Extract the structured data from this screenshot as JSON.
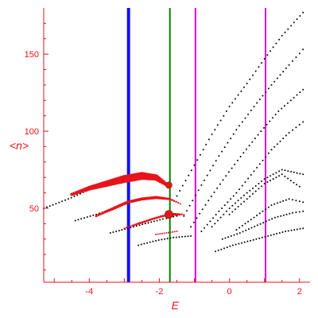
{
  "chart_data": {
    "type": "scatter",
    "title": "",
    "xlabel": "E",
    "ylabel": "<n>",
    "xlim": [
      -5.3,
      2.3
    ],
    "ylim": [
      2,
      180
    ],
    "grid": false,
    "legend": "none",
    "axis_color": "#e8141c",
    "x_ticks": [
      -4,
      -2,
      0,
      2
    ],
    "x_tick_labels": [
      "-4",
      "-2",
      "0",
      "2"
    ],
    "y_ticks": [
      50,
      100,
      150
    ],
    "y_tick_labels": [
      "50",
      "100",
      "150"
    ],
    "vertical_lines": [
      {
        "x": -2.88,
        "color": "#1010ff",
        "style": "thick"
      },
      {
        "x": -1.7,
        "color": "#008000",
        "style": "normal"
      },
      {
        "x": -0.97,
        "color": "#e000e0",
        "style": "normal"
      },
      {
        "x": 1.03,
        "color": "#e000e0",
        "style": "normal"
      }
    ],
    "series": [
      {
        "color": "#000000",
        "marker": "small-dot",
        "curves": [
          {
            "x": [
              -5.3,
              -4.6,
              -4.0,
              -3.4,
              -2.9
            ],
            "y": [
              50,
              56,
              62,
              67,
              70
            ]
          },
          {
            "x": [
              -4.4,
              -3.8,
              -3.2,
              -2.7,
              -2.2
            ],
            "y": [
              42,
              46,
              51,
              55,
              57
            ]
          },
          {
            "x": [
              -3.4,
              -2.9,
              -2.4,
              -1.9,
              -1.5
            ],
            "y": [
              34,
              37,
              40,
              43,
              45
            ]
          },
          {
            "x": [
              -2.6,
              -2.1,
              -1.6,
              -1.1
            ],
            "y": [
              26,
              29,
              31,
              32
            ]
          },
          {
            "x": [
              -1.5,
              -1.0,
              -0.5,
              0.0,
              0.5,
              1.0,
              1.5,
              2.1
            ],
            "y": [
              58,
              78,
              98,
              116,
              131,
              147,
              162,
              177
            ]
          },
          {
            "x": [
              -1.3,
              -0.8,
              -0.3,
              0.2,
              0.7,
              1.2,
              1.7,
              2.1
            ],
            "y": [
              45,
              65,
              84,
              101,
              116,
              130,
              143,
              153
            ]
          },
          {
            "x": [
              -1.1,
              -0.6,
              -0.1,
              0.4,
              0.9,
              1.4,
              2.1
            ],
            "y": [
              38,
              55,
              71,
              86,
              100,
              113,
              127
            ]
          },
          {
            "x": [
              -0.8,
              -0.3,
              0.2,
              0.7,
              1.2,
              1.7,
              2.1
            ],
            "y": [
              35,
              48,
              60,
              74,
              88,
              99,
              106
            ]
          },
          {
            "x": [
              -0.5,
              0.0,
              0.5,
              1.0,
              1.5,
              2.1
            ],
            "y": [
              38,
              50,
              60,
              69,
              75,
              72
            ]
          },
          {
            "x": [
              0.0,
              0.5,
              1.0,
              1.5,
              2.0
            ],
            "y": [
              46,
              56,
              66,
              72,
              64
            ]
          },
          {
            "x": [
              0.2,
              0.7,
              1.2,
              1.7,
              2.1
            ],
            "y": [
              36,
              44,
              52,
              56,
              54
            ]
          },
          {
            "x": [
              -0.2,
              0.3,
              0.8,
              1.3,
              1.8,
              2.1
            ],
            "y": [
              30,
              34,
              39,
              44,
              47,
              48
            ]
          },
          {
            "x": [
              -0.4,
              0.1,
              0.6,
              1.1,
              1.6,
              2.1
            ],
            "y": [
              22,
              26,
              29,
              32,
              35,
              37
            ]
          }
        ]
      },
      {
        "color": "#e8141c",
        "marker": "dot-size-weighted",
        "curves": [
          {
            "x": [
              -4.5,
              -4.0,
              -3.5,
              -3.0,
              -2.5,
              -2.1,
              -1.9,
              -1.7
            ],
            "y": [
              59,
              63,
              66,
              69,
              71,
              70,
              67,
              64
            ],
            "sizes": [
              2,
              3,
              4,
              5,
              5,
              4,
              3,
              2
            ]
          },
          {
            "x": [
              -3.8,
              -3.3,
              -2.9,
              -2.5,
              -2.1,
              -1.7,
              -1.4
            ],
            "y": [
              45,
              50,
              54,
              56,
              57,
              56,
              53
            ],
            "sizes": [
              1.5,
              2,
              2,
              2,
              2,
              1.5,
              1
            ]
          },
          {
            "x": [
              -3.0,
              -2.6,
              -2.2,
              -1.9,
              -1.6,
              -1.3
            ],
            "y": [
              37,
              40,
              43,
              45,
              46,
              46
            ],
            "sizes": [
              1,
              1.5,
              1.5,
              1.5,
              2,
              1
            ]
          },
          {
            "x": [
              -2.1,
              -1.8,
              -1.5
            ],
            "y": [
              33,
              34,
              35
            ],
            "sizes": [
              1,
              1,
              1
            ]
          }
        ]
      }
    ],
    "highlight_points": [
      {
        "x": -1.73,
        "y": 65,
        "color": "#e8141c",
        "size": 4
      },
      {
        "x": -1.73,
        "y": 46,
        "color": "#e8141c",
        "size": 5
      }
    ]
  }
}
